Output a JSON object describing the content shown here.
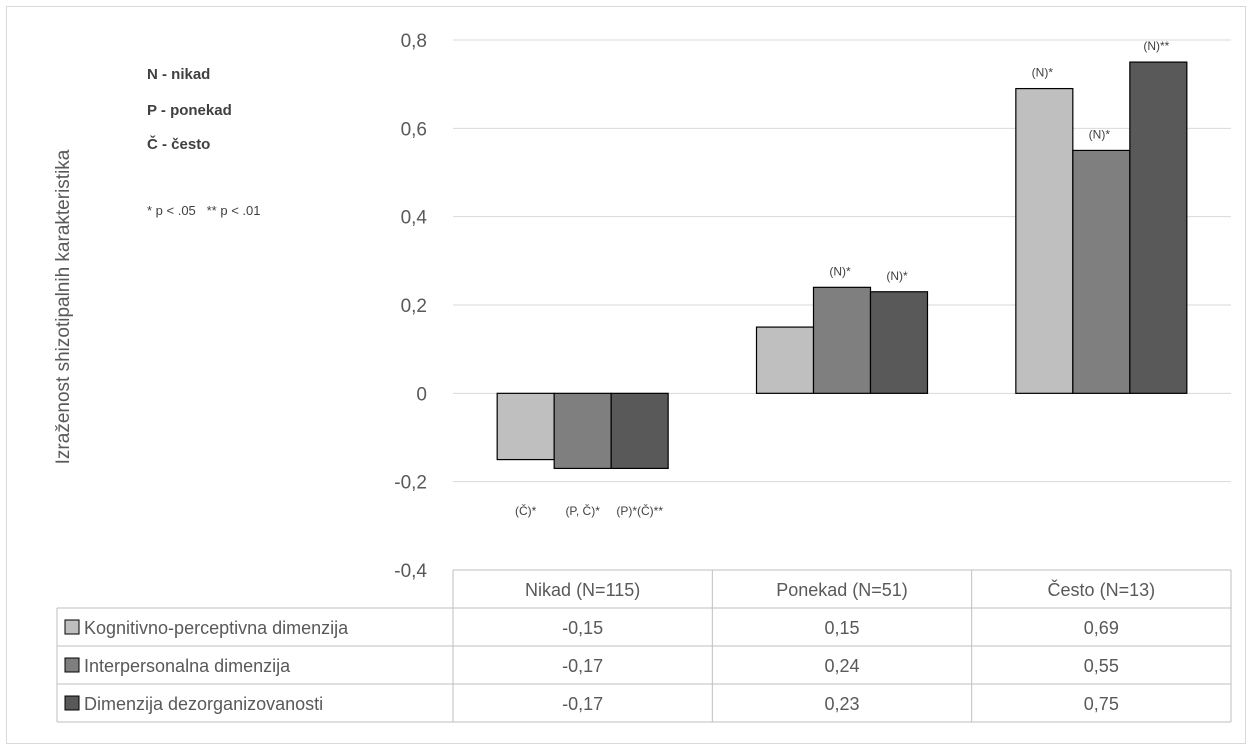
{
  "chart_data": {
    "type": "bar",
    "ylabel": "Izraženost shizotipalnih karakteristika",
    "xlabel": "",
    "ylim": [
      -0.4,
      0.8
    ],
    "yticks": [
      "0,8",
      "0,6",
      "0,4",
      "0,2",
      "0",
      "-0,2",
      "-0,4"
    ],
    "ytick_values": [
      0.8,
      0.6,
      0.4,
      0.2,
      0,
      -0.2,
      -0.4
    ],
    "grid": true,
    "categories": [
      "Nikad (N=115)",
      "Ponekad (N=51)",
      "Često (N=13)"
    ],
    "series": [
      {
        "name": "Kognitivno-perceptivna dimenzija",
        "color": "#bfbfbf",
        "values": [
          -0.15,
          0.15,
          0.69
        ],
        "table_values": [
          "-0,15",
          "0,15",
          "0,69"
        ]
      },
      {
        "name": "Interpersonalna dimenzija",
        "color": "#7f7f7f",
        "values": [
          -0.17,
          0.24,
          0.55
        ],
        "table_values": [
          "-0,17",
          "0,24",
          "0,55"
        ]
      },
      {
        "name": "Dimenzija dezorganizovanosti",
        "color": "#595959",
        "values": [
          -0.17,
          0.23,
          0.75
        ],
        "table_values": [
          "-0,17",
          "0,23",
          "0,75"
        ]
      }
    ],
    "bar_annotations": [
      [
        "(Č)*",
        "",
        "(N)*"
      ],
      [
        "(P, Č)*",
        "(N)*",
        "(N)*"
      ],
      [
        "(P)*(Č)**",
        "(N)*",
        "(N)**"
      ]
    ],
    "key_legend": [
      "N - nikad",
      "P - ponekad",
      "Č - često"
    ],
    "significance_note": "* p < .05   ** p < .01"
  }
}
